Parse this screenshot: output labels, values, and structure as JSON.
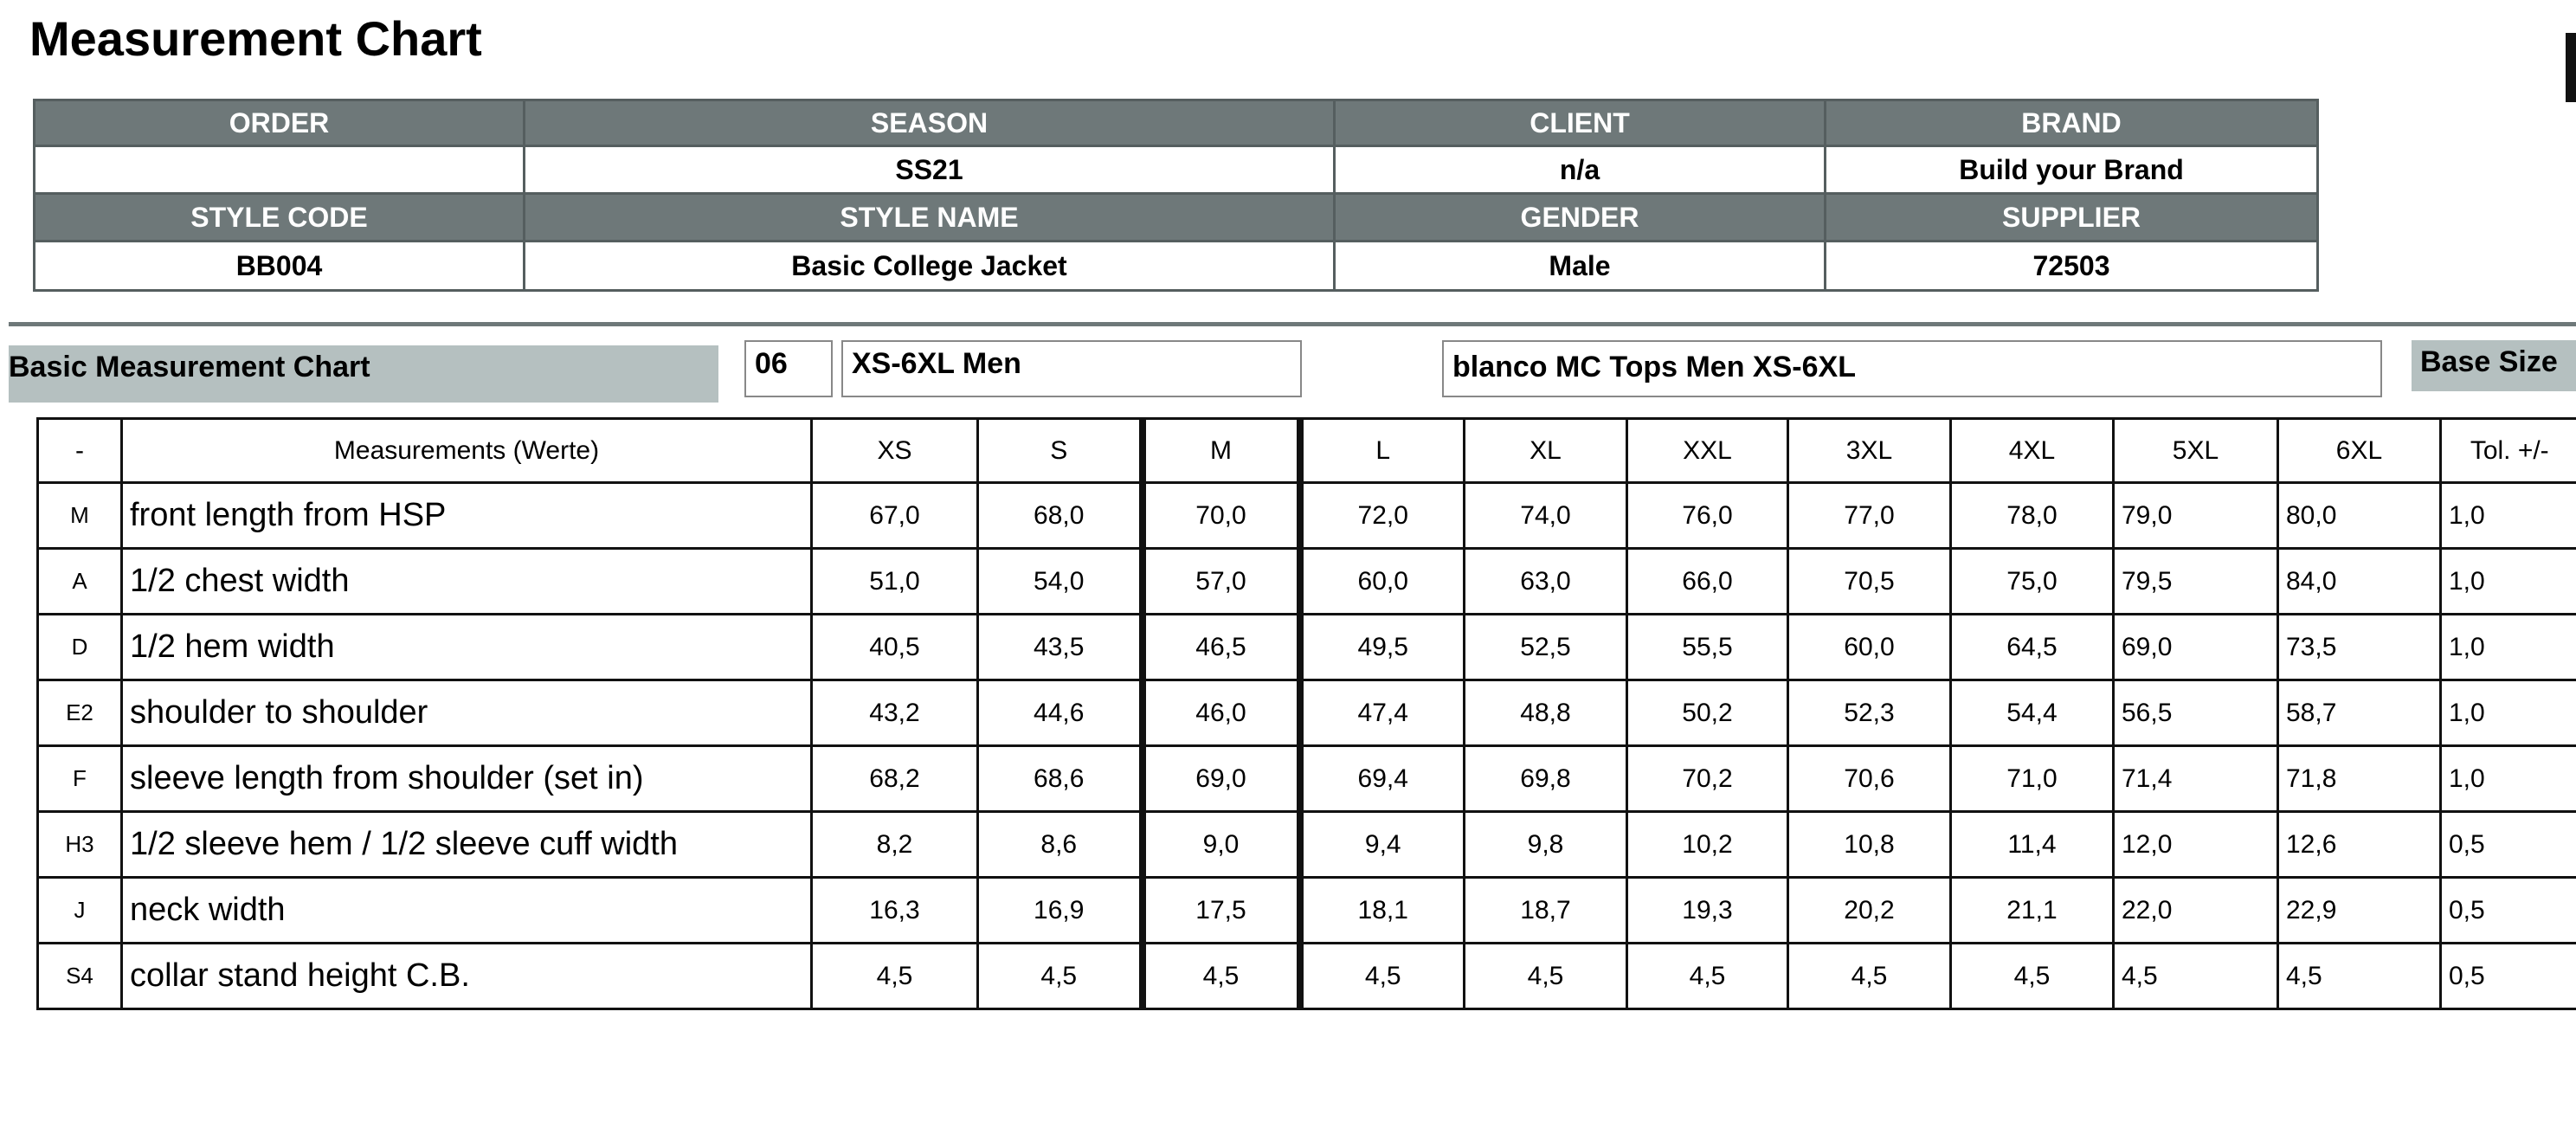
{
  "title": "Measurement Chart",
  "header_table": {
    "rows": [
      [
        "ORDER",
        "SEASON",
        "CLIENT",
        "BRAND"
      ],
      [
        null,
        "SS21",
        "n/a",
        "Build your Brand"
      ],
      [
        "STYLE CODE",
        "STYLE NAME",
        "GENDER",
        "SUPPLIER"
      ],
      [
        "BB004",
        "Basic College Jacket",
        "Male",
        "72503"
      ]
    ]
  },
  "section": {
    "title": "Basic Measurement Chart",
    "code": "06",
    "size_range": "XS-6XL Men",
    "template": "blanco MC Tops Men XS-6XL",
    "base_size_label": "Base Size"
  },
  "table": {
    "columns": [
      "-",
      "Measurements (Werte)",
      "XS",
      "S",
      "M",
      "L",
      "XL",
      "XXL",
      "3XL",
      "4XL",
      "5XL",
      "6XL",
      "Tol. +/-"
    ],
    "rows": [
      [
        "M",
        "front length from HSP",
        "67,0",
        "68,0",
        "70,0",
        "72,0",
        "74,0",
        "76,0",
        "77,0",
        "78,0",
        "79,0",
        "80,0",
        "1,0"
      ],
      [
        "A",
        "1/2 chest width",
        "51,0",
        "54,0",
        "57,0",
        "60,0",
        "63,0",
        "66,0",
        "70,5",
        "75,0",
        "79,5",
        "84,0",
        "1,0"
      ],
      [
        "D",
        "1/2 hem width",
        "40,5",
        "43,5",
        "46,5",
        "49,5",
        "52,5",
        "55,5",
        "60,0",
        "64,5",
        "69,0",
        "73,5",
        "1,0"
      ],
      [
        "E2",
        "shoulder to shoulder",
        "43,2",
        "44,6",
        "46,0",
        "47,4",
        "48,8",
        "50,2",
        "52,3",
        "54,4",
        "56,5",
        "58,7",
        "1,0"
      ],
      [
        "F",
        "sleeve length from shoulder (set in)",
        "68,2",
        "68,6",
        "69,0",
        "69,4",
        "69,8",
        "70,2",
        "70,6",
        "71,0",
        "71,4",
        "71,8",
        "1,0"
      ],
      [
        "H3",
        "1/2 sleeve hem / 1/2 sleeve cuff width",
        "8,2",
        "8,6",
        "9,0",
        "9,4",
        "9,8",
        "10,2",
        "10,8",
        "11,4",
        "12,0",
        "12,6",
        "0,5"
      ],
      [
        "J",
        "neck width",
        "16,3",
        "16,9",
        "17,5",
        "18,1",
        "18,7",
        "19,3",
        "20,2",
        "21,1",
        "22,0",
        "22,9",
        "0,5"
      ],
      [
        "S4",
        "collar stand height C.B.",
        "4,5",
        "4,5",
        "4,5",
        "4,5",
        "4,5",
        "4,5",
        "4,5",
        "4,5",
        "4,5",
        "4,5",
        "0,5"
      ]
    ]
  }
}
